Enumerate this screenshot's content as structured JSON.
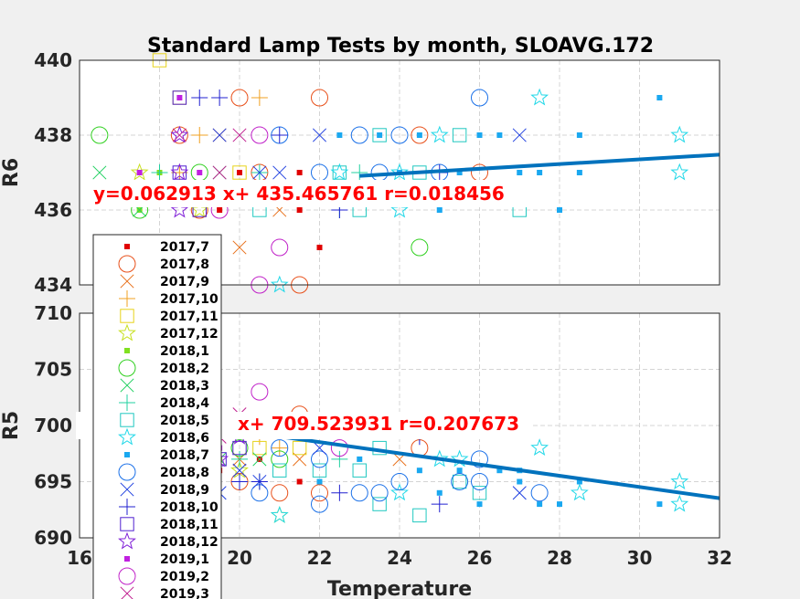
{
  "figure": {
    "title": "Standard Lamp Tests by month, SLOAVG.172",
    "xlabel": "Temperature"
  },
  "chart_data": [
    {
      "type": "scatter",
      "panel": "top",
      "title": "Standard Lamp Tests by month, SLOAVG.172",
      "xlabel": "",
      "ylabel": "R6",
      "xlim": [
        16,
        32
      ],
      "ylim": [
        434,
        440
      ],
      "yticks": [
        434,
        436,
        438,
        440
      ],
      "grid": true,
      "fit": {
        "slope": 0.062913,
        "intercept": 435.465761,
        "r": 0.018456
      },
      "annotation": "y=0.062913 x+ 435.465761 r=0.018456",
      "points": [
        [
          19.5,
          436,
          "2017,7"
        ],
        [
          21.5,
          436,
          "2017,7"
        ],
        [
          22,
          435,
          "2017,7"
        ],
        [
          20,
          437,
          "2017,7"
        ],
        [
          21.5,
          437,
          "2017,7"
        ],
        [
          20,
          439,
          "2017,8"
        ],
        [
          22,
          439,
          "2017,8"
        ],
        [
          18.5,
          438,
          "2017,8"
        ],
        [
          20.5,
          437,
          "2017,8"
        ],
        [
          21.5,
          434,
          "2017,8"
        ],
        [
          19,
          436,
          "2017,8"
        ],
        [
          24.5,
          438,
          "2017,8"
        ],
        [
          26,
          437,
          "2017,8"
        ],
        [
          20,
          435,
          "2017,9"
        ],
        [
          19.5,
          438,
          "2017,9"
        ],
        [
          21,
          436,
          "2017,9"
        ],
        [
          20.5,
          439,
          "2017,10"
        ],
        [
          18.5,
          437,
          "2017,10"
        ],
        [
          19,
          438,
          "2017,10"
        ],
        [
          18,
          440,
          "2017,11"
        ],
        [
          18.5,
          439,
          "2017,11"
        ],
        [
          20,
          437,
          "2017,11"
        ],
        [
          17.5,
          437,
          "2017,12"
        ],
        [
          19,
          436,
          "2017,12"
        ],
        [
          17.5,
          436,
          "2018,1"
        ],
        [
          18,
          437,
          "2018,1"
        ],
        [
          16.5,
          438,
          "2018,2"
        ],
        [
          17.5,
          436,
          "2018,2"
        ],
        [
          19,
          437,
          "2018,2"
        ],
        [
          24.5,
          435,
          "2018,2"
        ],
        [
          16.5,
          437,
          "2018,3"
        ],
        [
          17.5,
          436,
          "2018,3"
        ],
        [
          19.5,
          437,
          "2018,3"
        ],
        [
          18,
          437,
          "2018,4"
        ],
        [
          20.5,
          437,
          "2018,4"
        ],
        [
          22.5,
          436,
          "2018,4"
        ],
        [
          23,
          437,
          "2018,4"
        ],
        [
          20.5,
          436,
          "2018,5"
        ],
        [
          22.5,
          437,
          "2018,5"
        ],
        [
          23.5,
          438,
          "2018,5"
        ],
        [
          24.5,
          437,
          "2018,5"
        ],
        [
          25.5,
          438,
          "2018,5"
        ],
        [
          27,
          436,
          "2018,5"
        ],
        [
          23,
          436,
          "2018,5"
        ],
        [
          22.5,
          437,
          "2018,6"
        ],
        [
          24,
          436,
          "2018,6"
        ],
        [
          25,
          438,
          "2018,6"
        ],
        [
          27.5,
          439,
          "2018,6"
        ],
        [
          31,
          438,
          "2018,6"
        ],
        [
          31,
          437,
          "2018,6"
        ],
        [
          21,
          434,
          "2018,6"
        ],
        [
          24,
          437,
          "2018,6"
        ],
        [
          22.5,
          438,
          "2018,7"
        ],
        [
          23.5,
          438,
          "2018,7"
        ],
        [
          24.5,
          438,
          "2018,7"
        ],
        [
          25,
          436,
          "2018,7"
        ],
        [
          25.5,
          437,
          "2018,7"
        ],
        [
          26,
          438,
          "2018,7"
        ],
        [
          26.5,
          438,
          "2018,7"
        ],
        [
          27,
          437,
          "2018,7"
        ],
        [
          27.5,
          437,
          "2018,7"
        ],
        [
          28,
          436,
          "2018,7"
        ],
        [
          28.5,
          438,
          "2018,7"
        ],
        [
          28.5,
          437,
          "2018,7"
        ],
        [
          30.5,
          439,
          "2018,7"
        ],
        [
          24,
          437,
          "2018,7"
        ],
        [
          22,
          437,
          "2018,8"
        ],
        [
          23,
          438,
          "2018,8"
        ],
        [
          24,
          438,
          "2018,8"
        ],
        [
          26,
          439,
          "2018,8"
        ],
        [
          21,
          438,
          "2018,8"
        ],
        [
          23.5,
          437,
          "2018,8"
        ],
        [
          25,
          437,
          "2018,8"
        ],
        [
          22,
          438,
          "2018,9"
        ],
        [
          27,
          438,
          "2018,9"
        ],
        [
          20.5,
          437,
          "2018,9"
        ],
        [
          21,
          437,
          "2018,9"
        ],
        [
          19.5,
          438,
          "2018,9"
        ],
        [
          19,
          439,
          "2018,10"
        ],
        [
          19.5,
          439,
          "2018,10"
        ],
        [
          21,
          438,
          "2018,10"
        ],
        [
          22.5,
          436,
          "2018,10"
        ],
        [
          25,
          437,
          "2018,10"
        ],
        [
          18.5,
          439,
          "2018,11"
        ],
        [
          18.5,
          437,
          "2018,11"
        ],
        [
          19,
          436,
          "2018,11"
        ],
        [
          18.5,
          437,
          "2018,12"
        ],
        [
          18.5,
          436,
          "2018,12"
        ],
        [
          18.5,
          438,
          "2018,12"
        ],
        [
          17.5,
          437,
          "2019,1"
        ],
        [
          18.5,
          439,
          "2019,1"
        ],
        [
          19,
          437,
          "2019,1"
        ],
        [
          20.5,
          434,
          "2019,2"
        ],
        [
          20.5,
          438,
          "2019,2"
        ],
        [
          21,
          435,
          "2019,2"
        ],
        [
          19.5,
          436,
          "2019,2"
        ],
        [
          20,
          438,
          "2019,3"
        ],
        [
          18.5,
          438,
          "2019,3"
        ],
        [
          19.5,
          437,
          "2019,3"
        ]
      ]
    },
    {
      "type": "scatter",
      "panel": "bottom",
      "title": "",
      "xlabel": "Temperature",
      "ylabel": "R5",
      "xlim": [
        16,
        32
      ],
      "ylim": [
        690,
        710
      ],
      "yticks": [
        690,
        695,
        700,
        705,
        710
      ],
      "xticks": [
        16,
        18,
        20,
        22,
        24,
        26,
        28,
        30,
        32
      ],
      "grid": true,
      "fit": {
        "slope": -0.5,
        "intercept": 709.523931,
        "r": 0.207673
      },
      "annotation_visible": "x+ 709.523931 r=0.207673",
      "points": [
        [
          19.5,
          696,
          "2017,7"
        ],
        [
          21.5,
          695,
          "2017,7"
        ],
        [
          20.5,
          697,
          "2017,7"
        ],
        [
          21.5,
          701,
          "2017,8"
        ],
        [
          22,
          694,
          "2017,8"
        ],
        [
          24.5,
          698,
          "2017,8"
        ],
        [
          20,
          695,
          "2017,8"
        ],
        [
          21,
          694,
          "2017,8"
        ],
        [
          24,
          697,
          "2017,9"
        ],
        [
          20,
          697,
          "2017,9"
        ],
        [
          21.5,
          697,
          "2017,9"
        ],
        [
          20.5,
          699,
          "2017,10"
        ],
        [
          21,
          698,
          "2017,10"
        ],
        [
          20.5,
          698,
          "2017,11"
        ],
        [
          21.5,
          698,
          "2017,11"
        ],
        [
          21,
          692,
          "2017,12"
        ],
        [
          20,
          696,
          "2017,12"
        ],
        [
          19.5,
          697,
          "2018,1"
        ],
        [
          20,
          698,
          "2018,2"
        ],
        [
          21,
          697,
          "2018,2"
        ],
        [
          19.5,
          697,
          "2018,3"
        ],
        [
          20.5,
          697,
          "2018,3"
        ],
        [
          20,
          697,
          "2018,4"
        ],
        [
          22.5,
          697,
          "2018,4"
        ],
        [
          20.5,
          695,
          "2018,4"
        ],
        [
          23.5,
          693,
          "2018,5"
        ],
        [
          24.5,
          692,
          "2018,5"
        ],
        [
          23,
          696,
          "2018,5"
        ],
        [
          23.5,
          698,
          "2018,5"
        ],
        [
          25.5,
          695,
          "2018,5"
        ],
        [
          26,
          694,
          "2018,5"
        ],
        [
          22,
          696,
          "2018,5"
        ],
        [
          21,
          696,
          "2018,5"
        ],
        [
          21,
          692,
          "2018,6"
        ],
        [
          25,
          697,
          "2018,6"
        ],
        [
          25.5,
          697,
          "2018,6"
        ],
        [
          27.5,
          698,
          "2018,6"
        ],
        [
          28.5,
          694,
          "2018,6"
        ],
        [
          31,
          695,
          "2018,6"
        ],
        [
          31,
          693,
          "2018,6"
        ],
        [
          24,
          694,
          "2018,6"
        ],
        [
          22,
          695,
          "2018,7"
        ],
        [
          23,
          697,
          "2018,7"
        ],
        [
          24.5,
          696,
          "2018,7"
        ],
        [
          25,
          694,
          "2018,7"
        ],
        [
          26,
          693,
          "2018,7"
        ],
        [
          26.5,
          696,
          "2018,7"
        ],
        [
          27,
          696,
          "2018,7"
        ],
        [
          27,
          695,
          "2018,7"
        ],
        [
          27.5,
          693,
          "2018,7"
        ],
        [
          28,
          693,
          "2018,7"
        ],
        [
          28.5,
          695,
          "2018,7"
        ],
        [
          30.5,
          693,
          "2018,7"
        ],
        [
          25.5,
          696,
          "2018,7"
        ],
        [
          20.5,
          694,
          "2018,8"
        ],
        [
          22,
          693,
          "2018,8"
        ],
        [
          23,
          694,
          "2018,8"
        ],
        [
          23.5,
          694,
          "2018,8"
        ],
        [
          24,
          695,
          "2018,8"
        ],
        [
          25.5,
          695,
          "2018,8"
        ],
        [
          26,
          697,
          "2018,8"
        ],
        [
          26,
          695,
          "2018,8"
        ],
        [
          27.5,
          694,
          "2018,8"
        ],
        [
          22,
          697,
          "2018,8"
        ],
        [
          21,
          698,
          "2018,8"
        ],
        [
          19.5,
          694,
          "2018,9"
        ],
        [
          20,
          696,
          "2018,9"
        ],
        [
          20.5,
          695,
          "2018,9"
        ],
        [
          22,
          698,
          "2018,9"
        ],
        [
          27,
          694,
          "2018,9"
        ],
        [
          20,
          695,
          "2018,10"
        ],
        [
          20.5,
          695,
          "2018,10"
        ],
        [
          22.5,
          694,
          "2018,10"
        ],
        [
          25,
          693,
          "2018,10"
        ],
        [
          24.5,
          699,
          "2018,10"
        ],
        [
          19.5,
          697,
          "2018,11"
        ],
        [
          20,
          698,
          "2018,11"
        ],
        [
          20,
          699,
          "2018,12"
        ],
        [
          19.5,
          697,
          "2018,12"
        ],
        [
          19.5,
          698,
          "2019,1"
        ],
        [
          20.5,
          703,
          "2019,2"
        ],
        [
          22.5,
          698,
          "2019,2"
        ],
        [
          20,
          701,
          "2019,3"
        ],
        [
          19.5,
          699,
          "2019,3"
        ]
      ]
    }
  ],
  "legend": {
    "placement": "left-inside",
    "entries": [
      {
        "label": "2017,7",
        "marker": "point",
        "color": "#e00000"
      },
      {
        "label": "2017,8",
        "marker": "circle",
        "color": "#e8501a"
      },
      {
        "label": "2017,9",
        "marker": "x",
        "color": "#e8701a"
      },
      {
        "label": "2017,10",
        "marker": "plus",
        "color": "#f0a020"
      },
      {
        "label": "2017,11",
        "marker": "square",
        "color": "#e6d21a"
      },
      {
        "label": "2017,12",
        "marker": "star",
        "color": "#c8e020"
      },
      {
        "label": "2018,1",
        "marker": "point",
        "color": "#80e020"
      },
      {
        "label": "2018,2",
        "marker": "circle",
        "color": "#30d020"
      },
      {
        "label": "2018,3",
        "marker": "x",
        "color": "#20d060"
      },
      {
        "label": "2018,4",
        "marker": "plus",
        "color": "#20d0a0"
      },
      {
        "label": "2018,5",
        "marker": "square",
        "color": "#20c8c0"
      },
      {
        "label": "2018,6",
        "marker": "star",
        "color": "#20d8e8"
      },
      {
        "label": "2018,7",
        "marker": "point",
        "color": "#1aa8f0"
      },
      {
        "label": "2018,8",
        "marker": "circle",
        "color": "#1a70e8"
      },
      {
        "label": "2018,9",
        "marker": "x",
        "color": "#2040e0"
      },
      {
        "label": "2018,10",
        "marker": "plus",
        "color": "#2020d0"
      },
      {
        "label": "2018,11",
        "marker": "square",
        "color": "#5020d0"
      },
      {
        "label": "2018,12",
        "marker": "star",
        "color": "#8020d8"
      },
      {
        "label": "2019,1",
        "marker": "point",
        "color": "#c020e0"
      },
      {
        "label": "2019,2",
        "marker": "circle",
        "color": "#c020c8"
      },
      {
        "label": "2019,3",
        "marker": "x",
        "color": "#c02090"
      }
    ]
  },
  "colors": {
    "fit_line": "#0072bd",
    "annotation": "#ff0000",
    "grid": "#d0d0d0"
  }
}
